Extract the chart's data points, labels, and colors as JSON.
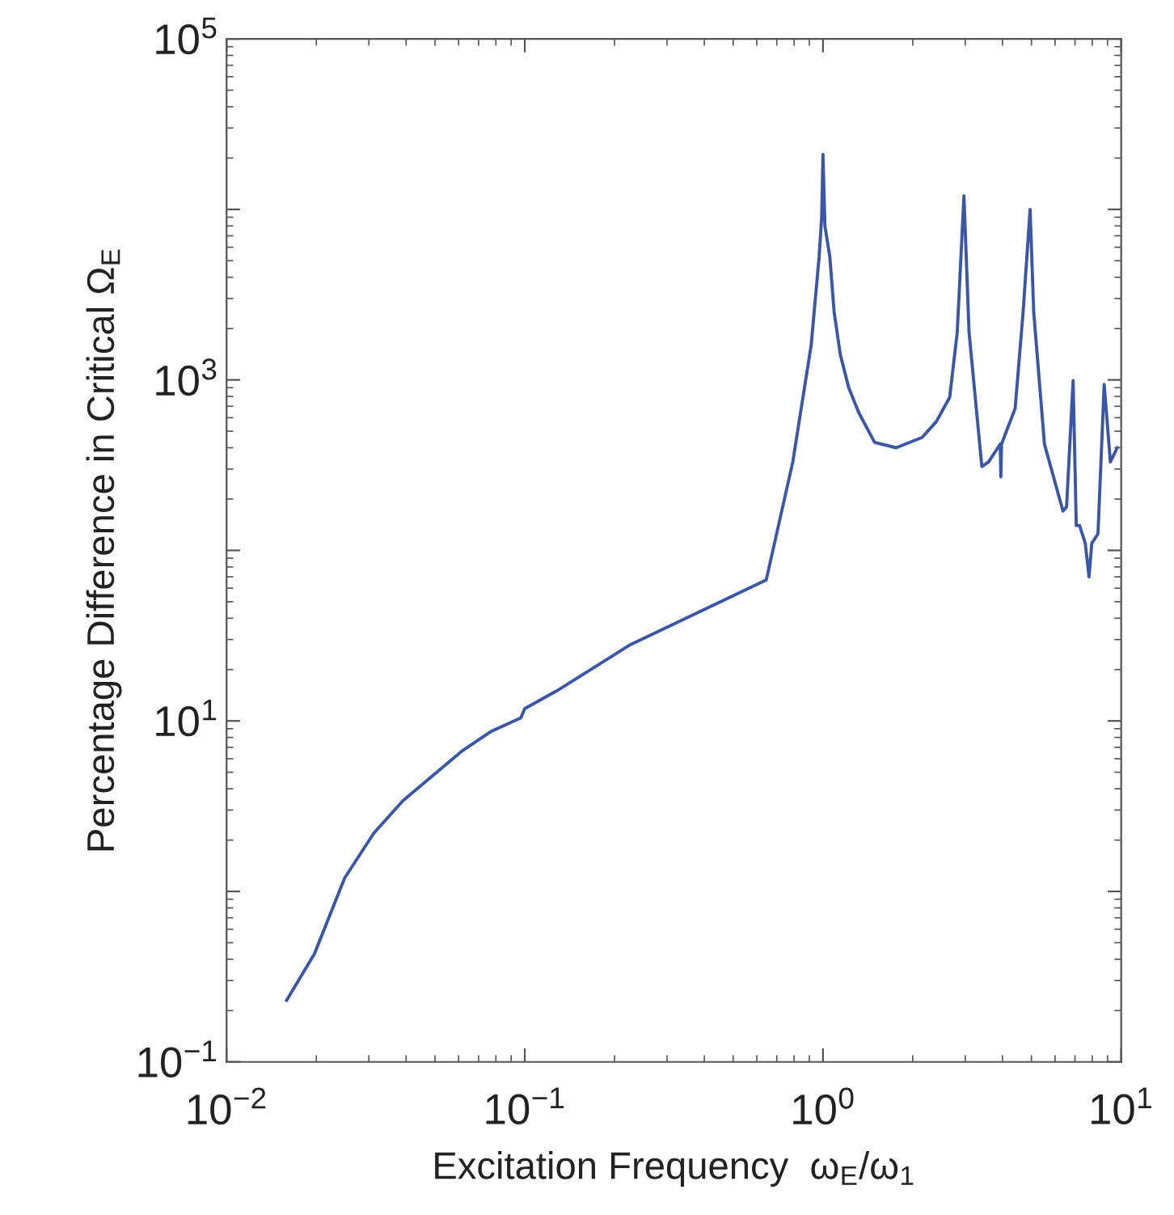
{
  "chart_data": {
    "type": "line",
    "xlabel": "Excitation Frequency  ω$_{E}$/ω$_{1}$",
    "ylabel": "Percentage Difference in Critical Ω$_{E}$",
    "log": "xy",
    "xlim": [
      0.01,
      10
    ],
    "ylim": [
      0.1,
      100000
    ],
    "xticks": [
      {
        "value": 0.01,
        "label": "10$^{−2}$"
      },
      {
        "value": 0.1,
        "label": "10$^{−1}$"
      },
      {
        "value": 1,
        "label": "10$^{0}$"
      },
      {
        "value": 10,
        "label": "10$^{1}$"
      }
    ],
    "yticks": [
      {
        "value": 0.1,
        "label": "10$^{−1}$"
      },
      {
        "value": 1,
        "label": null
      },
      {
        "value": 10,
        "label": "10$^{1}$"
      },
      {
        "value": 100,
        "label": null
      },
      {
        "value": 1000,
        "label": "10$^{3}$"
      },
      {
        "value": 10000,
        "label": null
      },
      {
        "value": 100000,
        "label": "10$^{5}$"
      }
    ],
    "marker": "none",
    "line_style": "solid",
    "series": [
      {
        "color": "#3a56a8",
        "x": [
          0.0159,
          0.0197,
          0.0249,
          0.0312,
          0.039,
          0.0612,
          0.0773,
          0.097,
          0.1,
          0.128,
          0.226,
          0.645,
          0.792,
          0.913,
          0.971,
          0.99,
          1.0,
          1.015,
          1.054,
          1.09,
          1.144,
          1.22,
          1.32,
          1.49,
          1.76,
          2.15,
          2.4,
          2.66,
          2.82,
          2.97,
          3.09,
          3.41,
          3.59,
          3.93,
          3.95,
          3.97,
          4.41,
          4.69,
          4.95,
          5.09,
          5.53,
          6.38,
          6.56,
          6.9,
          7.07,
          7.25,
          7.58,
          7.8,
          7.97,
          8.36,
          8.77,
          9.2,
          9.7
        ],
        "values": [
          0.23,
          0.43,
          1.2,
          2.2,
          3.4,
          6.6,
          8.7,
          10.4,
          11.8,
          15,
          28,
          67,
          330,
          1600,
          5300,
          9000,
          21000,
          8000,
          5300,
          2500,
          1400,
          900,
          640,
          430,
          400,
          460,
          570,
          790,
          1900,
          12000,
          1900,
          310,
          330,
          420,
          270,
          420,
          680,
          2500,
          10000,
          2500,
          420,
          170,
          180,
          990,
          140,
          140,
          110,
          70,
          110,
          125,
          940,
          330,
          400
        ]
      }
    ]
  }
}
